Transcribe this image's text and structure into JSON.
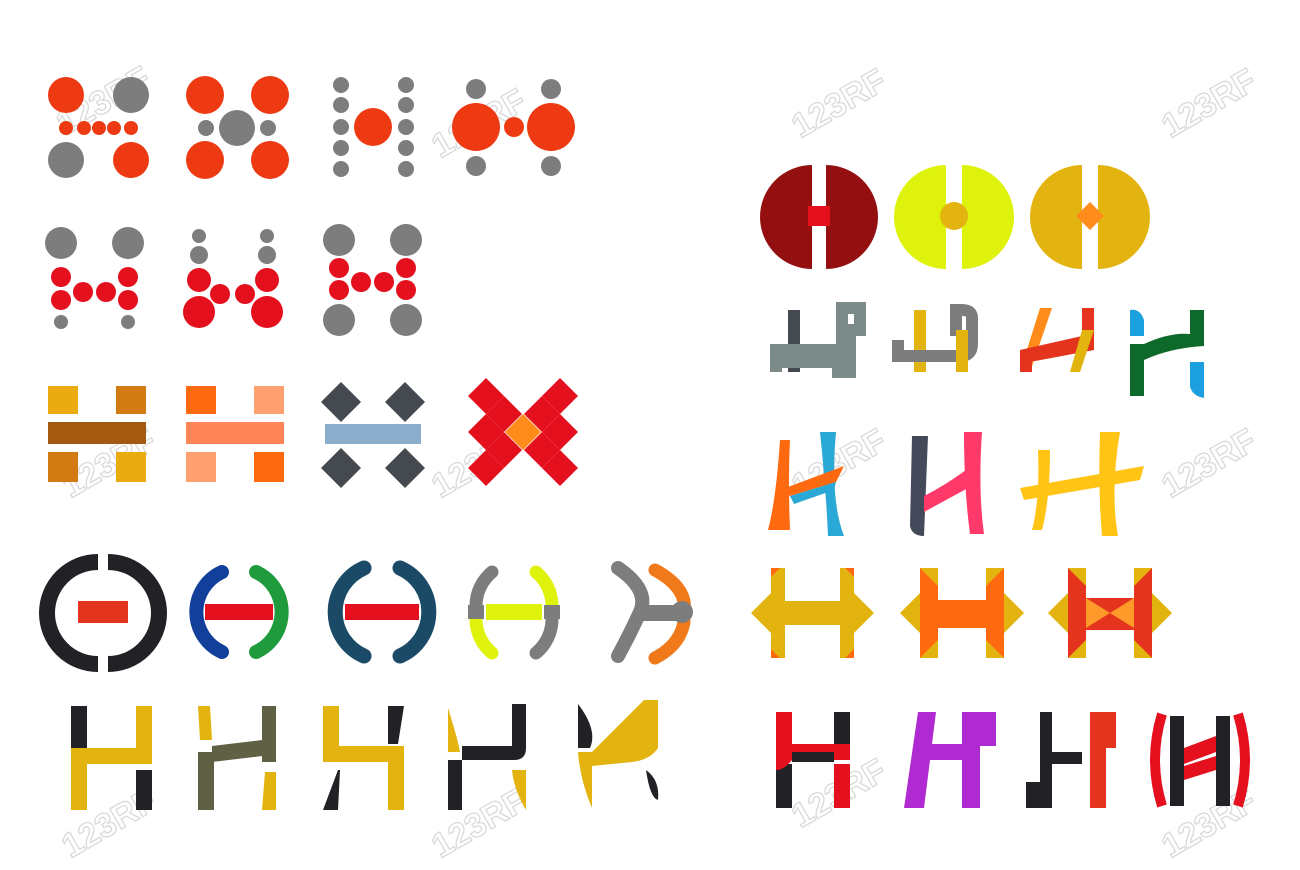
{
  "watermark": {
    "text": "123RF",
    "color": "#d9d9d9"
  },
  "palette": {
    "orange_red": "#ee3a12",
    "grey": "#7d7d7d",
    "red": "#e4101e",
    "dark_grey": "#444a4f",
    "steel_blue": "#8aaecb",
    "maroon": "#941010",
    "lime": "#dff20c",
    "gold": "#e3b40f",
    "orange": "#f07a1a",
    "dark": "#222226",
    "teal_dark": "#1a4a66",
    "purple": "#b02ad1",
    "green": "#1f9a3d",
    "navy": "#123f9a"
  },
  "icon_sets": [
    {
      "name": "dot-letters",
      "count": 7
    },
    {
      "name": "block-letters",
      "count": 4
    },
    {
      "name": "bracket-letters",
      "count": 5
    },
    {
      "name": "stroke-letters",
      "count": 5
    },
    {
      "name": "circle-split-letters",
      "count": 3
    },
    {
      "name": "ribbon-letters",
      "count": 4
    },
    {
      "name": "brush-letters",
      "count": 3
    },
    {
      "name": "arrow-letters",
      "count": 3
    },
    {
      "name": "bold-letters",
      "count": 4
    }
  ]
}
